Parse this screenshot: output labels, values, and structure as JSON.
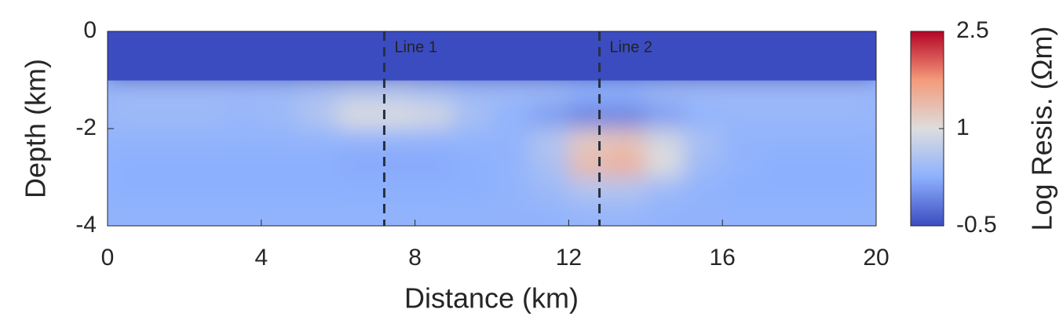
{
  "chart_data": {
    "type": "heatmap",
    "xlabel": "Distance (km)",
    "ylabel": "Depth (km)",
    "colorbar_label": "Log Resis. (Ωm)",
    "xlim": [
      0,
      20
    ],
    "ylim": [
      -4,
      0
    ],
    "xticks": [
      0,
      4,
      8,
      12,
      16,
      20
    ],
    "yticks": [
      0,
      -2,
      -4
    ],
    "clim": [
      -0.5,
      2.5
    ],
    "cticks": [
      -0.5,
      1,
      2.5
    ],
    "colormap": [
      "#3b4cc0",
      "#8db0fe",
      "#dddddd",
      "#f49a7b",
      "#b40426"
    ],
    "x": [
      0.5,
      1.5,
      2.5,
      3.5,
      4.5,
      5.5,
      6.5,
      7.5,
      8.5,
      9.5,
      10.5,
      11.5,
      12.5,
      13.5,
      14.5,
      15.5,
      16.5,
      17.5,
      18.5,
      19.5
    ],
    "y": [
      -0.25,
      -0.75,
      -1.25,
      -1.75,
      -2.25,
      -2.75,
      -3.25,
      -3.75
    ],
    "z": [
      [
        -0.5,
        -0.5,
        -0.5,
        -0.5,
        -0.5,
        -0.5,
        -0.5,
        -0.5,
        -0.5,
        -0.5,
        -0.5,
        -0.5,
        -0.5,
        -0.5,
        -0.5,
        -0.5,
        -0.5,
        -0.5,
        -0.5,
        -0.5
      ],
      [
        -0.5,
        -0.5,
        -0.5,
        -0.5,
        -0.5,
        -0.5,
        -0.5,
        -0.5,
        -0.5,
        -0.5,
        -0.5,
        -0.5,
        -0.5,
        -0.5,
        -0.5,
        -0.5,
        -0.5,
        -0.5,
        -0.5,
        -0.5
      ],
      [
        0.4,
        0.4,
        0.4,
        0.4,
        0.4,
        0.5,
        0.6,
        0.6,
        0.5,
        0.4,
        0.4,
        0.4,
        0.3,
        0.3,
        0.4,
        0.4,
        0.4,
        0.4,
        0.4,
        0.4
      ],
      [
        0.4,
        0.4,
        0.4,
        0.35,
        0.4,
        0.6,
        1.0,
        1.0,
        0.9,
        0.5,
        0.3,
        0.1,
        -0.1,
        -0.1,
        0.1,
        0.3,
        0.35,
        0.35,
        0.35,
        0.35
      ],
      [
        0.3,
        0.3,
        0.3,
        0.3,
        0.3,
        0.3,
        0.3,
        0.3,
        0.3,
        0.3,
        0.3,
        0.6,
        1.2,
        1.3,
        0.9,
        0.5,
        0.3,
        0.3,
        0.3,
        0.3
      ],
      [
        0.25,
        0.25,
        0.25,
        0.25,
        0.25,
        0.25,
        0.2,
        0.2,
        0.2,
        0.25,
        0.3,
        0.5,
        1.4,
        1.5,
        1.0,
        0.4,
        0.3,
        0.25,
        0.25,
        0.25
      ],
      [
        0.25,
        0.25,
        0.25,
        0.25,
        0.25,
        0.25,
        0.25,
        0.25,
        0.25,
        0.25,
        0.3,
        0.4,
        0.6,
        0.6,
        0.4,
        0.3,
        0.25,
        0.25,
        0.25,
        0.25
      ],
      [
        0.3,
        0.3,
        0.3,
        0.3,
        0.3,
        0.3,
        0.3,
        0.3,
        0.3,
        0.3,
        0.3,
        0.3,
        0.35,
        0.35,
        0.3,
        0.3,
        0.3,
        0.3,
        0.3,
        0.3
      ]
    ],
    "annotations": [
      {
        "x": 7.2,
        "label": "Line 1"
      },
      {
        "x": 12.8,
        "label": "Line 2"
      }
    ]
  }
}
